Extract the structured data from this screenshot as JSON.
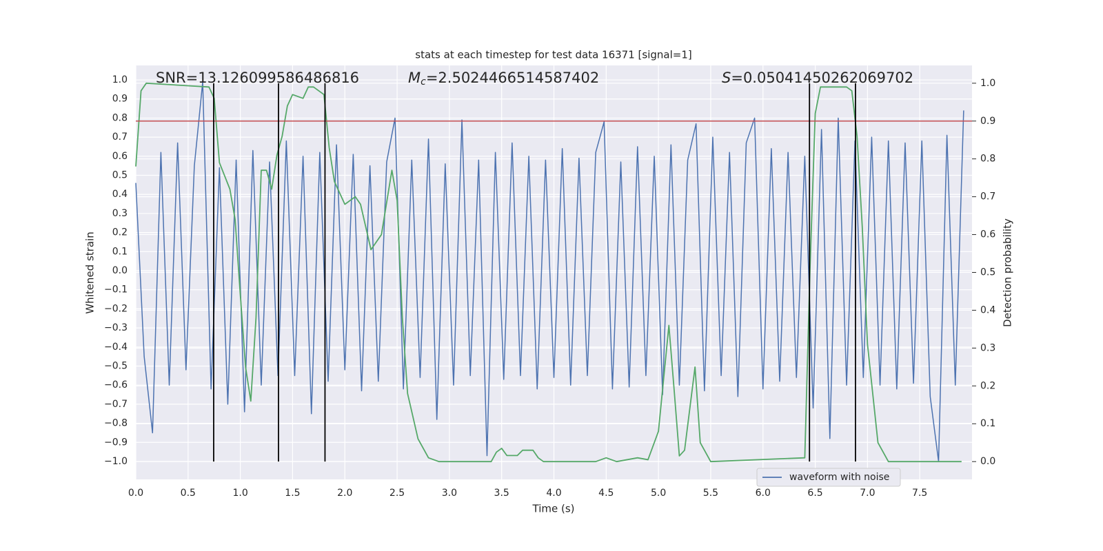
{
  "chart_data": {
    "type": "line",
    "title": "stats at each timestep for test data 16371 [signal=1]",
    "xlabel": "Time (s)",
    "ylabel": "Whitened strain",
    "y2label": "Detection probability",
    "annotations": {
      "snr": "SNR=13.126099586486816",
      "mc": {
        "symbol": "M",
        "subscript": "c",
        "text": "=2.5024466514587402"
      },
      "s": {
        "symbol": "S",
        "text": "=0.05041450262069702"
      }
    },
    "xlim": [
      0,
      8
    ],
    "ylim": [
      -1.094,
      1.076
    ],
    "y2lim": [
      -0.047,
      1.047
    ],
    "xticks": [
      {
        "value": 0,
        "label": "0.0"
      },
      0.5,
      {
        "value": 1,
        "label": "1.0"
      },
      1.5,
      {
        "value": 2,
        "label": "2.0"
      },
      2.5,
      {
        "value": 3,
        "label": "3.0"
      },
      3.5,
      {
        "value": 4,
        "label": "4.0"
      },
      4.5,
      {
        "value": 5,
        "label": "5.0"
      },
      5.5,
      {
        "value": 6,
        "label": "6.0"
      },
      6.5,
      {
        "value": 7,
        "label": "7.0"
      },
      7.5
    ],
    "yticks": [
      {
        "value": -1,
        "label": "−1.0"
      },
      {
        "value": -0.9,
        "label": "−0.9"
      },
      {
        "value": -0.8,
        "label": "−0.8"
      },
      {
        "value": -0.7,
        "label": "−0.7"
      },
      {
        "value": -0.6,
        "label": "−0.6"
      },
      {
        "value": -0.5,
        "label": "−0.5"
      },
      {
        "value": -0.4,
        "label": "−0.4"
      },
      {
        "value": -0.3,
        "label": "−0.3"
      },
      {
        "value": -0.2,
        "label": "−0.2"
      },
      {
        "value": -0.1,
        "label": "−0.1"
      },
      {
        "value": 0,
        "label": "0.0"
      },
      0.1,
      0.2,
      0.3,
      0.4,
      0.5,
      0.6,
      0.7,
      0.8,
      0.9,
      {
        "value": 1,
        "label": "1.0"
      }
    ],
    "y2ticks": [
      {
        "value": 0,
        "label": "0.0"
      },
      0.1,
      0.2,
      0.3,
      0.4,
      0.5,
      0.6,
      0.7,
      0.8,
      0.9,
      {
        "value": 1,
        "label": "1.0"
      }
    ],
    "grid": true,
    "legend": "lower right",
    "series": [
      {
        "name": "waveform with noise",
        "color": "#4c72b0",
        "axis": "y",
        "x": [
          0,
          0.08,
          0.16,
          0.24,
          0.32,
          0.4,
          0.48,
          0.56,
          0.64,
          0.72,
          0.8,
          0.88,
          0.96,
          1.04,
          1.12,
          1.2,
          1.28,
          1.36,
          1.44,
          1.52,
          1.6,
          1.68,
          1.76,
          1.84,
          1.92,
          2.0,
          2.08,
          2.16,
          2.24,
          2.32,
          2.4,
          2.48,
          2.56,
          2.64,
          2.72,
          2.8,
          2.88,
          2.96,
          3.04,
          3.12,
          3.2,
          3.28,
          3.36,
          3.44,
          3.52,
          3.6,
          3.68,
          3.76,
          3.84,
          3.92,
          4.0,
          4.08,
          4.16,
          4.24,
          4.32,
          4.4,
          4.48,
          4.56,
          4.64,
          4.72,
          4.8,
          4.88,
          4.96,
          5.04,
          5.12,
          5.2,
          5.28,
          5.36,
          5.44,
          5.52,
          5.6,
          5.68,
          5.76,
          5.84,
          5.92,
          6.0,
          6.08,
          6.16,
          6.24,
          6.32,
          6.4,
          6.48,
          6.56,
          6.64,
          6.72,
          6.8,
          6.88,
          6.96,
          7.04,
          7.12,
          7.2,
          7.28,
          7.36,
          7.44,
          7.52,
          7.6,
          7.68,
          7.76,
          7.84,
          7.92
        ],
        "values": [
          0.46,
          -0.45,
          -0.85,
          0.62,
          -0.6,
          0.67,
          -0.52,
          0.55,
          0.99,
          -0.62,
          0.54,
          -0.7,
          0.58,
          -0.74,
          0.63,
          -0.6,
          0.57,
          -0.55,
          0.68,
          -0.55,
          0.6,
          -0.75,
          0.62,
          -0.58,
          0.66,
          -0.52,
          0.61,
          -0.63,
          0.55,
          -0.58,
          0.57,
          0.8,
          -0.62,
          0.58,
          -0.56,
          0.69,
          -0.78,
          0.56,
          -0.6,
          0.79,
          -0.55,
          0.58,
          -0.97,
          0.62,
          -0.57,
          0.67,
          -0.55,
          0.6,
          -0.62,
          0.58,
          -0.56,
          0.64,
          -0.6,
          0.59,
          -0.55,
          0.62,
          0.78,
          -0.62,
          0.57,
          -0.61,
          0.65,
          -0.55,
          0.6,
          -0.65,
          0.66,
          -0.6,
          0.58,
          0.77,
          -0.63,
          0.7,
          -0.55,
          0.62,
          -0.66,
          0.67,
          0.8,
          -0.62,
          0.64,
          -0.58,
          0.62,
          -0.56,
          0.6,
          -0.72,
          0.74,
          -0.88,
          0.8,
          -0.6,
          0.68,
          -0.56,
          0.7,
          -0.6,
          0.68,
          -0.62,
          0.67,
          -0.59,
          0.68,
          -0.66,
          -1.0,
          0.71,
          -0.6,
          0.84
        ]
      },
      {
        "color": "#55a868",
        "axis": "y2",
        "x": [
          0,
          0.05,
          0.1,
          0.7,
          0.75,
          0.8,
          0.9,
          0.95,
          1.0,
          1.05,
          1.1,
          1.15,
          1.2,
          1.25,
          1.3,
          1.35,
          1.4,
          1.45,
          1.5,
          1.6,
          1.65,
          1.7,
          1.8,
          1.85,
          1.9,
          2.0,
          2.1,
          2.15,
          2.25,
          2.35,
          2.45,
          2.5,
          2.55,
          2.6,
          2.7,
          2.8,
          2.9,
          3.4,
          3.45,
          3.5,
          3.55,
          3.65,
          3.7,
          3.8,
          3.85,
          3.9,
          4.4,
          4.5,
          4.6,
          4.8,
          4.9,
          5.0,
          5.1,
          5.15,
          5.2,
          5.25,
          5.35,
          5.4,
          5.5,
          6.4,
          6.45,
          6.5,
          6.55,
          6.8,
          6.85,
          6.9,
          6.95,
          7.0,
          7.1,
          7.2,
          7.9
        ],
        "values": [
          0.78,
          0.98,
          1.0,
          0.99,
          0.96,
          0.79,
          0.72,
          0.64,
          0.44,
          0.25,
          0.16,
          0.38,
          0.77,
          0.77,
          0.72,
          0.81,
          0.86,
          0.94,
          0.97,
          0.96,
          0.99,
          0.99,
          0.97,
          0.83,
          0.74,
          0.68,
          0.7,
          0.68,
          0.56,
          0.6,
          0.77,
          0.69,
          0.38,
          0.18,
          0.06,
          0.01,
          0.0,
          0.0,
          0.025,
          0.035,
          0.016,
          0.016,
          0.03,
          0.03,
          0.01,
          0.0,
          0.0,
          0.01,
          0.0,
          0.01,
          0.005,
          0.08,
          0.36,
          0.19,
          0.015,
          0.03,
          0.25,
          0.05,
          0.0,
          0.01,
          0.51,
          0.92,
          0.99,
          0.99,
          0.98,
          0.86,
          0.62,
          0.31,
          0.05,
          0.0,
          0.0
        ]
      }
    ],
    "threshold": {
      "y": 0.9,
      "axis": "y2",
      "color": "#c44e52"
    },
    "vlines": {
      "x": [
        0.745,
        1.365,
        1.81,
        6.445,
        6.885
      ],
      "ymin": 0,
      "ymax": 1,
      "axis": "y2",
      "color": "#000000"
    }
  }
}
